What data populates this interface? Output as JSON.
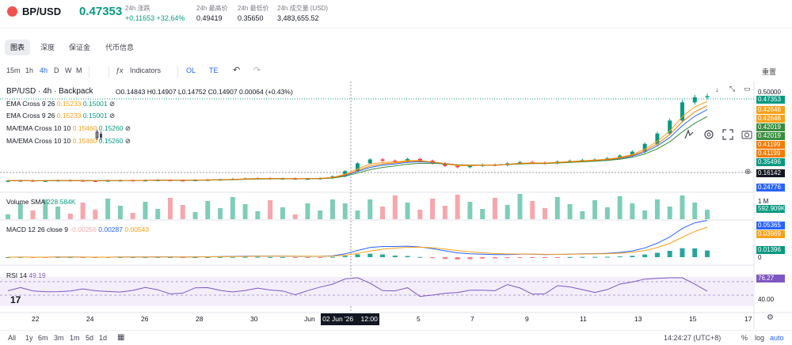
{
  "ticker": {
    "pair": "BP/USD",
    "last_price": "0.47353",
    "stats": [
      {
        "label": "24h 涨跌",
        "value": "+0,11653 +32,64%",
        "up": true
      },
      {
        "label": "24h 最高价",
        "value": "0.49419",
        "up": false
      },
      {
        "label": "24h 最低价",
        "value": "0.35650",
        "up": false
      },
      {
        "label": "24h 成交量 (USD)",
        "value": "3,483,655.52",
        "up": false
      }
    ]
  },
  "tabs": [
    "图表",
    "深度",
    "保证金",
    "代币信息"
  ],
  "toolbar": {
    "intervals": [
      "15m",
      "1h",
      "4h",
      "D",
      "W",
      "M"
    ],
    "active_interval": "4h",
    "indicators_label": "Indicators",
    "ol_label": "OL",
    "te_label": "TE",
    "reset_label": "重置"
  },
  "legend": {
    "title": "BP/USD · 4h · Backpack",
    "ohlc": "O0.14843 H0.14907 L0.14752 C0.14907 0.00064 (+0.43%)",
    "indicators": [
      {
        "name": "EMA Cross 9 26",
        "v1": "0.15233",
        "v2": "0.15001"
      },
      {
        "name": "EMA Cross 9 26",
        "v1": "0.15233",
        "v2": "0.15001"
      },
      {
        "name": "MA/EMA Cross 10 10",
        "v1": "0.15460",
        "v2": "0.15260"
      },
      {
        "name": "MA/EMA Cross 10 10",
        "v1": "0.15460",
        "v2": "0.15260"
      }
    ],
    "volume": {
      "name": "Volume SMA",
      "value": "228.584K"
    },
    "macd": {
      "name": "MACD 12 26 close 9",
      "v1": "-0.00256",
      "v2": "0.00287",
      "v3": "0.00543"
    },
    "rsi": {
      "name": "RSI 14",
      "value": "49.19"
    }
  },
  "price_scale": {
    "top": "0.50000",
    "boxes": [
      {
        "text": "0.47353",
        "color": "#089981"
      },
      {
        "text": "0.42646",
        "color": "#f7a21b"
      },
      {
        "text": "0.42646",
        "color": "#f7a21b"
      },
      {
        "text": "0.42019",
        "color": "#388e3c"
      },
      {
        "text": "0.42019",
        "color": "#388e3c"
      },
      {
        "text": "0.41199",
        "color": "#f57c00"
      },
      {
        "text": "0.41199",
        "color": "#f57c00"
      },
      {
        "text": "0.35496",
        "color": "#089981"
      },
      {
        "text": "0.16142",
        "color": "#131722"
      },
      {
        "text": "0.24776",
        "color": "#2962ff"
      }
    ],
    "volume_top": "1 M",
    "volume_box": "592.909K",
    "macd_boxes": [
      "0.05365",
      "0.03969",
      "0.01396"
    ],
    "macd_zero": "0",
    "rsi_box": "76.27",
    "rsi_level": "40.00"
  },
  "time_axis": {
    "labels": [
      "22",
      "24",
      "26",
      "28",
      "30",
      "Jun",
      "5",
      "7",
      "9",
      "11",
      "13",
      "15",
      "17"
    ],
    "crosshair": "02 Jun '26    12:00"
  },
  "bottom": {
    "ranges": [
      "All",
      "1y",
      "6m",
      "3m",
      "1m",
      "5d",
      "1d"
    ],
    "clock": "14:24:27 (UTC+8)",
    "percent": "%",
    "log": "log",
    "auto": "auto"
  },
  "chart_data": {
    "type": "line",
    "price_close": [
      0.148,
      0.149,
      0.147,
      0.148,
      0.15,
      0.149,
      0.148,
      0.147,
      0.149,
      0.15,
      0.149,
      0.15,
      0.151,
      0.15,
      0.149,
      0.151,
      0.152,
      0.153,
      0.155,
      0.157,
      0.158,
      0.156,
      0.157,
      0.155,
      0.156,
      0.158,
      0.165,
      0.185,
      0.215,
      0.23,
      0.225,
      0.222,
      0.232,
      0.225,
      0.215,
      0.205,
      0.2,
      0.205,
      0.21,
      0.208,
      0.215,
      0.22,
      0.218,
      0.215,
      0.222,
      0.225,
      0.228,
      0.23,
      0.235,
      0.245,
      0.26,
      0.29,
      0.33,
      0.38,
      0.45,
      0.47,
      0.474
    ],
    "rsi_level": 40.0
  }
}
